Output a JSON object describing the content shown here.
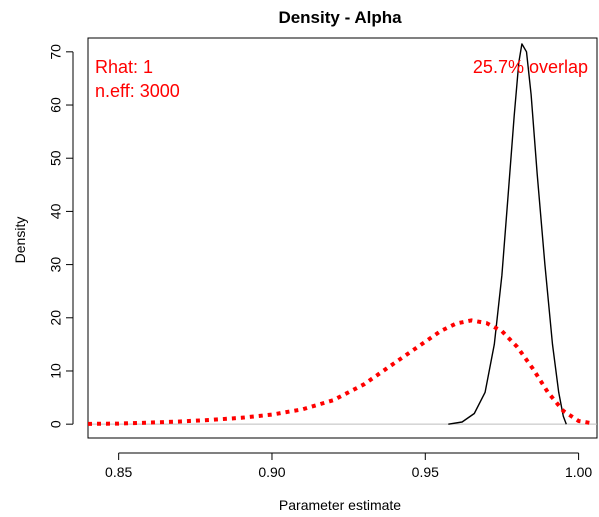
{
  "chart_data": {
    "type": "line",
    "title": "Density - Alpha",
    "xlabel": "Parameter estimate",
    "ylabel": "Density",
    "xlim": [
      0.84,
      1.006
    ],
    "ylim": [
      -2.6,
      72.6
    ],
    "x_ticks": [
      0.85,
      0.9,
      0.95,
      1.0
    ],
    "x_tick_labels": [
      "0.85",
      "0.90",
      "0.95",
      "1.00"
    ],
    "y_ticks": [
      0,
      10,
      20,
      30,
      40,
      50,
      60,
      70
    ],
    "y_tick_labels": [
      "0",
      "10",
      "20",
      "30",
      "40",
      "50",
      "60",
      "70"
    ],
    "grid": false,
    "reference_line": {
      "y": 0,
      "color": "#bebebe"
    },
    "annotations": {
      "rhat": "Rhat: 1",
      "neff": "n.eff: 3000",
      "overlap": "25.7% overlap",
      "color": "#ff0000"
    },
    "series": [
      {
        "style": "solid",
        "color": "#000000",
        "x": [
          0.9575,
          0.962,
          0.966,
          0.9695,
          0.9725,
          0.975,
          0.977,
          0.979,
          0.9805,
          0.9815,
          0.983,
          0.9845,
          0.9865,
          0.989,
          0.9915,
          0.9935,
          0.995,
          0.996
        ],
        "y": [
          0,
          0.4,
          2,
          6,
          15,
          28,
          43,
          58,
          68,
          71.5,
          70,
          62,
          47,
          30,
          15,
          6,
          1.5,
          0
        ]
      },
      {
        "style": "dotted",
        "color": "#ff0000",
        "x": [
          0.84,
          0.85,
          0.86,
          0.87,
          0.88,
          0.89,
          0.9,
          0.91,
          0.92,
          0.93,
          0.94,
          0.95,
          0.955,
          0.96,
          0.965,
          0.97,
          0.975,
          0.98,
          0.985,
          0.99,
          0.995,
          1.0,
          1.005
        ],
        "y": [
          0.05,
          0.1,
          0.3,
          0.5,
          0.8,
          1.2,
          1.8,
          2.8,
          4.5,
          7.5,
          11.5,
          15.5,
          17.5,
          18.9,
          19.5,
          19,
          17.5,
          14.5,
          10.5,
          6,
          2.5,
          0.6,
          0.1
        ]
      }
    ]
  }
}
